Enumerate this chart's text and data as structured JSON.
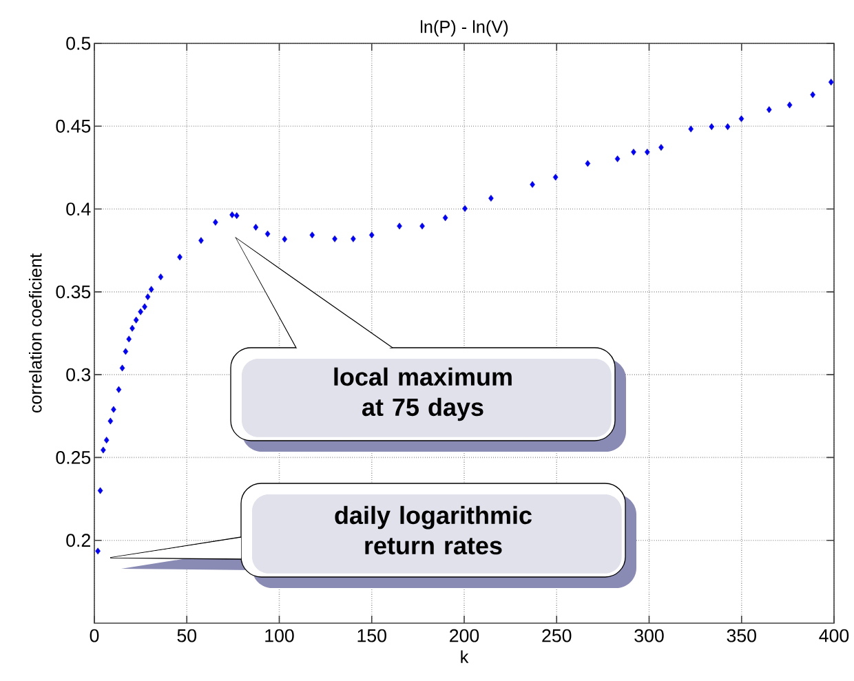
{
  "chart_data": {
    "type": "scatter",
    "title": "ln(P) - ln(V)",
    "xlabel": "k",
    "ylabel": "correlation coeficient",
    "x": [
      1.9,
      3.2,
      4.8,
      6.6,
      8.7,
      10.4,
      13.2,
      15.1,
      16.9,
      18.7,
      20.5,
      22.6,
      25,
      27.2,
      28.9,
      30.8,
      35.9,
      46.2,
      57.7,
      65.5,
      74.5,
      77,
      87.3,
      93.7,
      102.9,
      117.8,
      130,
      140,
      150,
      165,
      177.3,
      189.8,
      200.4,
      214.5,
      236.9,
      249.4,
      266.8,
      282.9,
      291.6,
      299,
      306.5,
      322.6,
      333.8,
      342.5,
      349.9,
      364.9,
      376,
      388.5,
      398.4
    ],
    "series": [
      {
        "color": "#0000ff",
        "values": [
          0.1935,
          0.23,
          0.2545,
          0.2605,
          0.272,
          0.279,
          0.291,
          0.304,
          0.314,
          0.3215,
          0.328,
          0.333,
          0.338,
          0.341,
          0.347,
          0.3515,
          0.359,
          0.371,
          0.381,
          0.392,
          0.3965,
          0.396,
          0.389,
          0.385,
          0.3818,
          0.3843,
          0.382,
          0.382,
          0.3843,
          0.3897,
          0.3897,
          0.3947,
          0.4003,
          0.4065,
          0.4148,
          0.4192,
          0.4275,
          0.4303,
          0.4344,
          0.4344,
          0.4372,
          0.4483,
          0.4497,
          0.4497,
          0.4545,
          0.46,
          0.4628,
          0.469,
          0.4766
        ]
      }
    ],
    "marker": "diamond",
    "grid": true,
    "xlim": [
      0,
      400
    ],
    "xticks": [
      0,
      50,
      100,
      150,
      200,
      250,
      300,
      350,
      400
    ],
    "ylim": [
      0.15,
      0.5
    ],
    "yticks": [
      0.2,
      0.25,
      0.3,
      0.35,
      0.4,
      0.45,
      0.5
    ],
    "annotations": [
      "local maximum at 75 days",
      "daily logarithmic return rates"
    ]
  }
}
